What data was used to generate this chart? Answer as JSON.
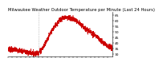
{
  "title": "Milwaukee Weather Outdoor Temperature per Minute (Last 24 Hours)",
  "background_color": "#ffffff",
  "line_color": "#cc0000",
  "line_width": 0.7,
  "ylim": [
    28,
    68
  ],
  "yticks": [
    30,
    35,
    40,
    45,
    50,
    55,
    60,
    65
  ],
  "vline_color": "#999999",
  "vline_style": ":",
  "vline_x": 0.295,
  "title_fontsize": 3.8,
  "tick_fontsize": 3.2,
  "num_points": 1440,
  "curve_x": [
    0.0,
    0.05,
    0.12,
    0.2,
    0.25,
    0.295,
    0.33,
    0.38,
    0.44,
    0.5,
    0.55,
    0.58,
    0.62,
    0.67,
    0.72,
    0.78,
    0.85,
    0.92,
    1.0
  ],
  "curve_y": [
    34.5,
    34.0,
    33.2,
    31.5,
    30.8,
    31.5,
    35.0,
    44.0,
    54.0,
    61.5,
    63.5,
    63.0,
    62.0,
    59.0,
    55.0,
    51.0,
    46.0,
    40.0,
    35.0
  ],
  "noise_std": 1.2,
  "noise_seed": 7
}
